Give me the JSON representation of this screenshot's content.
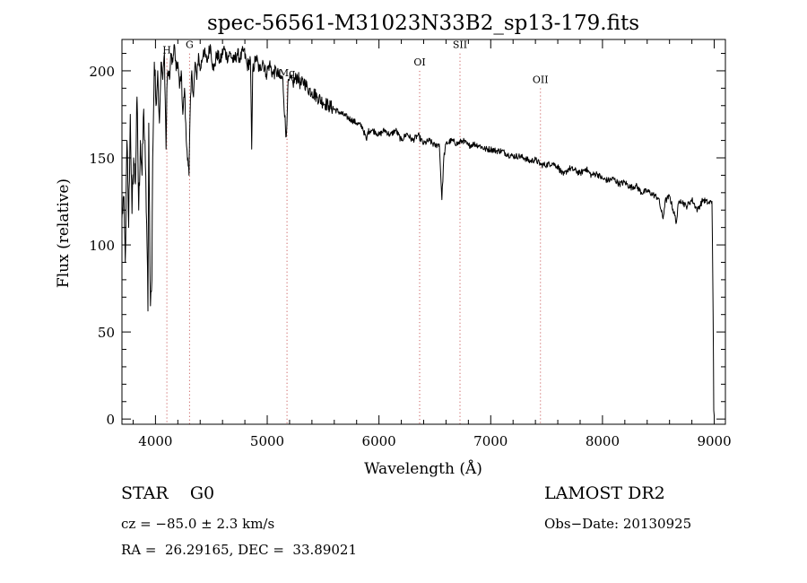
{
  "chart_data": {
    "type": "line",
    "title": "spec-56561-M31023N33B2_sp13-179.fits",
    "xlabel": "Wavelength (Å)",
    "ylabel": "Flux (relative)",
    "xlim": [
      3700,
      9100
    ],
    "ylim": [
      -3,
      218
    ],
    "xticks": [
      4000,
      5000,
      6000,
      7000,
      8000,
      9000
    ],
    "yticks": [
      0,
      50,
      100,
      150,
      200
    ],
    "lines": [
      {
        "label": "H",
        "wavelength": 4102,
        "label_flux": 210
      },
      {
        "label": "G",
        "wavelength": 4305,
        "label_flux": 213
      },
      {
        "label": "Mg",
        "wavelength": 5177,
        "label_flux": 197
      },
      {
        "label": "OI",
        "wavelength": 6364,
        "label_flux": 203
      },
      {
        "label": "SII",
        "wavelength": 6725,
        "label_flux": 213
      },
      {
        "label": "OII",
        "wavelength": 7445,
        "label_flux": 193
      }
    ],
    "series": [
      {
        "name": "flux",
        "x": [
          3700,
          3715,
          3730,
          3745,
          3760,
          3775,
          3790,
          3805,
          3820,
          3835,
          3850,
          3865,
          3880,
          3895,
          3910,
          3925,
          3933,
          3940,
          3955,
          3968,
          3975,
          3990,
          4005,
          4020,
          4035,
          4050,
          4065,
          4080,
          4095,
          4102,
          4110,
          4125,
          4140,
          4155,
          4170,
          4185,
          4200,
          4215,
          4230,
          4245,
          4260,
          4275,
          4290,
          4300,
          4310,
          4325,
          4340,
          4355,
          4370,
          4385,
          4400,
          4430,
          4460,
          4490,
          4520,
          4550,
          4580,
          4610,
          4640,
          4670,
          4700,
          4730,
          4760,
          4790,
          4820,
          4850,
          4861,
          4870,
          4900,
          4930,
          4960,
          4990,
          5020,
          5050,
          5080,
          5110,
          5140,
          5167,
          5173,
          5184,
          5200,
          5230,
          5270,
          5300,
          5330,
          5360,
          5400,
          5450,
          5500,
          5550,
          5600,
          5650,
          5700,
          5750,
          5800,
          5850,
          5890,
          5900,
          5930,
          5970,
          6000,
          6050,
          6100,
          6150,
          6200,
          6250,
          6300,
          6350,
          6400,
          6450,
          6500,
          6540,
          6563,
          6580,
          6600,
          6650,
          6700,
          6750,
          6800,
          6850,
          6900,
          6950,
          7000,
          7050,
          7100,
          7150,
          7200,
          7250,
          7300,
          7350,
          7400,
          7450,
          7500,
          7550,
          7600,
          7650,
          7700,
          7750,
          7800,
          7850,
          7900,
          7950,
          8000,
          8050,
          8100,
          8150,
          8200,
          8250,
          8300,
          8350,
          8400,
          8450,
          8500,
          8542,
          8560,
          8600,
          8662,
          8680,
          8700,
          8750,
          8800,
          8850,
          8900,
          8950,
          8980,
          8990,
          8996,
          9000
        ],
        "y": [
          115,
          128,
          90,
          160,
          110,
          175,
          118,
          150,
          135,
          185,
          120,
          160,
          140,
          178,
          145,
          100,
          62,
          170,
          65,
          80,
          150,
          205,
          180,
          200,
          170,
          205,
          195,
          210,
          155,
          190,
          200,
          195,
          210,
          205,
          215,
          200,
          205,
          190,
          200,
          175,
          190,
          160,
          150,
          140,
          175,
          200,
          185,
          205,
          195,
          210,
          200,
          212,
          205,
          215,
          200,
          210,
          205,
          213,
          208,
          210,
          205,
          210,
          207,
          212,
          203,
          206,
          155,
          200,
          208,
          200,
          206,
          198,
          204,
          198,
          200,
          196,
          195,
          162,
          165,
          190,
          195,
          193,
          197,
          192,
          194,
          190,
          188,
          185,
          182,
          180,
          178,
          176,
          174,
          172,
          170,
          168,
          160,
          165,
          166,
          165,
          163,
          166,
          163,
          166,
          160,
          164,
          160,
          163,
          158,
          160,
          157,
          158,
          126,
          150,
          158,
          160,
          158,
          160,
          157,
          158,
          157,
          155,
          155,
          154,
          154,
          152,
          151,
          151,
          150,
          148,
          149,
          146,
          146,
          147,
          145,
          140,
          144,
          143,
          141,
          144,
          140,
          141,
          138,
          137,
          138,
          135,
          136,
          133,
          134,
          130,
          131,
          129,
          127,
          115,
          125,
          128,
          113,
          124,
          126,
          122,
          126,
          120,
          126,
          124,
          125,
          60,
          5,
          2
        ]
      }
    ],
    "info": {
      "class": "STAR    G0",
      "survey": "LAMOST DR2",
      "cz": "cz = −85.0 ± 2.3 km/s",
      "obs_date": "Obs−Date: 20130925",
      "radec": "RA =  26.29165, DEC =  33.89021"
    }
  }
}
